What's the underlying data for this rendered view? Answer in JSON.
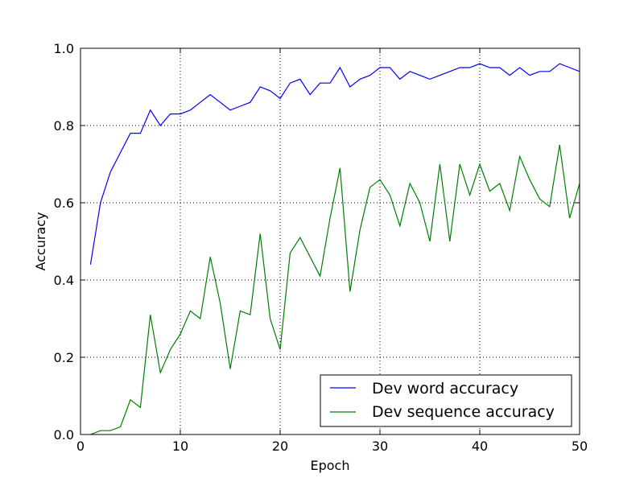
{
  "chart_data": {
    "type": "line",
    "title": "",
    "xlabel": "Epoch",
    "ylabel": "Accuracy",
    "xlim": [
      0,
      50
    ],
    "ylim": [
      0.0,
      1.0
    ],
    "xticks": [
      0,
      10,
      20,
      30,
      40,
      50
    ],
    "xtick_labels": [
      "0",
      "10",
      "20",
      "30",
      "40",
      "50"
    ],
    "yticks": [
      0.0,
      0.2,
      0.4,
      0.6,
      0.8,
      1.0
    ],
    "ytick_labels": [
      "0.0",
      "0.2",
      "0.4",
      "0.6",
      "0.8",
      "1.0"
    ],
    "grid": true,
    "legend_position": "lower-right",
    "x": [
      1,
      2,
      3,
      4,
      5,
      6,
      7,
      8,
      9,
      10,
      11,
      12,
      13,
      14,
      15,
      16,
      17,
      18,
      19,
      20,
      21,
      22,
      23,
      24,
      25,
      26,
      27,
      28,
      29,
      30,
      31,
      32,
      33,
      34,
      35,
      36,
      37,
      38,
      39,
      40,
      41,
      42,
      43,
      44,
      45,
      46,
      47,
      48,
      49,
      50
    ],
    "series": [
      {
        "name": "Dev word accuracy",
        "color": "#0000ff",
        "values": [
          0.44,
          0.6,
          0.68,
          0.73,
          0.78,
          0.78,
          0.84,
          0.8,
          0.83,
          0.83,
          0.84,
          0.86,
          0.88,
          0.86,
          0.84,
          0.85,
          0.86,
          0.9,
          0.89,
          0.87,
          0.91,
          0.92,
          0.88,
          0.91,
          0.91,
          0.95,
          0.9,
          0.92,
          0.93,
          0.95,
          0.95,
          0.92,
          0.94,
          0.93,
          0.92,
          0.93,
          0.94,
          0.95,
          0.95,
          0.96,
          0.95,
          0.95,
          0.93,
          0.95,
          0.93,
          0.94,
          0.94,
          0.96,
          0.95,
          0.94
        ]
      },
      {
        "name": "Dev sequence accuracy",
        "color": "#007f00",
        "values": [
          0.0,
          0.01,
          0.01,
          0.02,
          0.09,
          0.07,
          0.31,
          0.16,
          0.22,
          0.26,
          0.32,
          0.3,
          0.46,
          0.34,
          0.17,
          0.32,
          0.31,
          0.52,
          0.3,
          0.22,
          0.47,
          0.51,
          0.46,
          0.41,
          0.56,
          0.69,
          0.37,
          0.53,
          0.64,
          0.66,
          0.62,
          0.54,
          0.65,
          0.6,
          0.5,
          0.7,
          0.5,
          0.7,
          0.62,
          0.7,
          0.63,
          0.65,
          0.58,
          0.72,
          0.66,
          0.61,
          0.59,
          0.75,
          0.56,
          0.65
        ]
      }
    ]
  }
}
